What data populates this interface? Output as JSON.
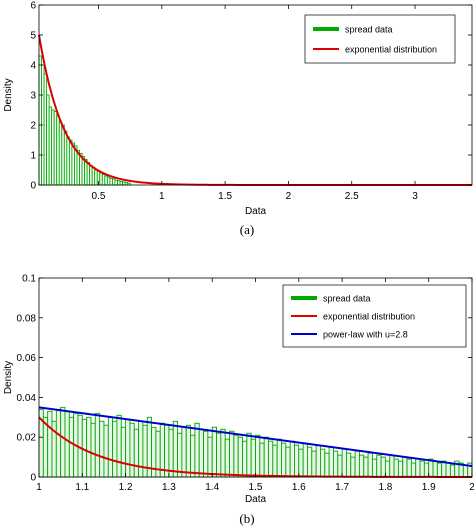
{
  "chart_data": [
    {
      "type": "bar",
      "caption": "(a)",
      "xlabel": "Data",
      "ylabel": "Density",
      "xlim": [
        0.03,
        3.45
      ],
      "ylim": [
        0,
        6
      ],
      "xticks": [
        0.5,
        1,
        1.5,
        2,
        2.5,
        3
      ],
      "xtick_labels": [
        "0.5",
        "1",
        "1.5",
        "2",
        "2.5",
        "3"
      ],
      "yticks": [
        0,
        1,
        2,
        3,
        4,
        5,
        6
      ],
      "ytick_labels": [
        "0",
        "1",
        "2",
        "3",
        "4",
        "5",
        "6"
      ],
      "grid": false,
      "legend_position": "top-right",
      "series": [
        {
          "name": "spread data",
          "kind": "histogram",
          "color": "#00aa00",
          "bin_start": 0.03,
          "bin_width": 0.02,
          "values": [
            4.3,
            4.0,
            3.7,
            3.0,
            2.6,
            2.5,
            2.45,
            2.3,
            2.1,
            2.0,
            1.8,
            1.6,
            1.5,
            1.4,
            1.3,
            1.15,
            1.05,
            0.95,
            0.85,
            0.75,
            0.65,
            0.6,
            0.5,
            0.45,
            0.4,
            0.35,
            0.3,
            0.26,
            0.22,
            0.2,
            0.16,
            0.14,
            0.12,
            0.1,
            0.08,
            0.06
          ]
        },
        {
          "name": "exponential distribution",
          "kind": "curve",
          "color": "#dd0000",
          "function": "exponential",
          "rate": 5.0,
          "x0": 0.03
        }
      ]
    },
    {
      "type": "bar",
      "caption": "(b)",
      "xlabel": "Data",
      "ylabel": "Density",
      "xlim": [
        1,
        2
      ],
      "ylim": [
        0,
        0.1
      ],
      "xticks": [
        1,
        1.1,
        1.2,
        1.3,
        1.4,
        1.5,
        1.6,
        1.7,
        1.8,
        1.9,
        2
      ],
      "xtick_labels": [
        "1",
        "1.1",
        "1.2",
        "1.3",
        "1.4",
        "1.5",
        "1.6",
        "1.7",
        "1.8",
        "1.9",
        "2"
      ],
      "yticks": [
        0,
        0.02,
        0.04,
        0.06,
        0.08,
        0.1
      ],
      "ytick_labels": [
        "0",
        "0.02",
        "0.04",
        "0.06",
        "0.08",
        "0.1"
      ],
      "grid": false,
      "legend_position": "top-right",
      "series": [
        {
          "name": "spread data",
          "kind": "histogram",
          "color": "#00aa00",
          "bin_start": 1.0,
          "bin_width": 0.01,
          "values": [
            0.034,
            0.03,
            0.033,
            0.028,
            0.034,
            0.035,
            0.033,
            0.03,
            0.032,
            0.031,
            0.029,
            0.03,
            0.027,
            0.032,
            0.028,
            0.026,
            0.03,
            0.028,
            0.031,
            0.025,
            0.029,
            0.027,
            0.024,
            0.028,
            0.026,
            0.03,
            0.025,
            0.023,
            0.027,
            0.026,
            0.024,
            0.028,
            0.022,
            0.025,
            0.026,
            0.021,
            0.027,
            0.024,
            0.023,
            0.02,
            0.025,
            0.022,
            0.024,
            0.019,
            0.023,
            0.021,
            0.02,
            0.018,
            0.022,
            0.019,
            0.021,
            0.017,
            0.02,
            0.018,
            0.016,
            0.019,
            0.017,
            0.015,
            0.018,
            0.016,
            0.014,
            0.017,
            0.015,
            0.013,
            0.016,
            0.014,
            0.012,
            0.015,
            0.013,
            0.011,
            0.014,
            0.012,
            0.01,
            0.013,
            0.011,
            0.01,
            0.012,
            0.009,
            0.011,
            0.01,
            0.008,
            0.011,
            0.009,
            0.008,
            0.01,
            0.009,
            0.007,
            0.009,
            0.008,
            0.007,
            0.009,
            0.008,
            0.007,
            0.008,
            0.007,
            0.006,
            0.008,
            0.007,
            0.006,
            0.007
          ]
        },
        {
          "name": "exponential distribution",
          "kind": "curve",
          "color": "#dd0000",
          "function": "exponential",
          "amplitude": 0.03,
          "rate": 7.5,
          "x0": 1.0
        },
        {
          "name": "power-law with u=2.8",
          "kind": "curve",
          "color": "#0000cc",
          "function": "linear",
          "points": [
            [
              1.0,
              0.035
            ],
            [
              2.0,
              0.0055
            ]
          ]
        }
      ]
    }
  ]
}
